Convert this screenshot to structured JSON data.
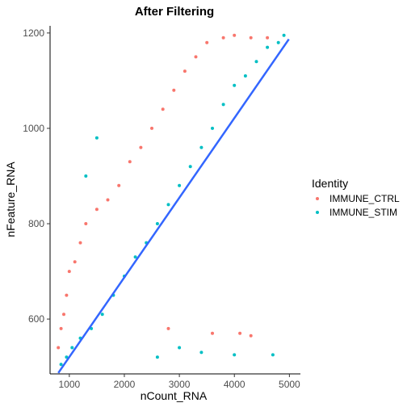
{
  "chart_data": {
    "type": "scatter",
    "title": "After Filtering",
    "xlabel": "nCount_RNA",
    "ylabel": "nFeature_RNA",
    "xlim": [
      650,
      5200
    ],
    "ylim": [
      485,
      1215
    ],
    "xticks": [
      1000,
      2000,
      3000,
      4000,
      5000
    ],
    "yticks": [
      600,
      800,
      1000,
      1200
    ],
    "grid": false,
    "legend": {
      "title": "Identity",
      "position": "right",
      "entries": [
        "IMMUNE_CTRL",
        "IMMUNE_STIM"
      ]
    },
    "series": [
      {
        "name": "IMMUNE_CTRL",
        "color": "#F8766D",
        "values": [
          [
            800,
            540
          ],
          [
            850,
            580
          ],
          [
            900,
            610
          ],
          [
            950,
            650
          ],
          [
            1000,
            700
          ],
          [
            1100,
            720
          ],
          [
            1200,
            760
          ],
          [
            1300,
            800
          ],
          [
            1500,
            830
          ],
          [
            1700,
            850
          ],
          [
            1900,
            880
          ],
          [
            2100,
            930
          ],
          [
            2300,
            960
          ],
          [
            2500,
            1000
          ],
          [
            2700,
            1040
          ],
          [
            2900,
            1080
          ],
          [
            3100,
            1120
          ],
          [
            3300,
            1150
          ],
          [
            3500,
            1180
          ],
          [
            3800,
            1190
          ],
          [
            4000,
            1195
          ],
          [
            4300,
            1190
          ],
          [
            4600,
            1190
          ],
          [
            3600,
            570
          ],
          [
            4100,
            570
          ],
          [
            4300,
            565
          ],
          [
            2800,
            580
          ]
        ]
      },
      {
        "name": "IMMUNE_STIM",
        "color": "#00BFC4",
        "values": [
          [
            850,
            505
          ],
          [
            950,
            520
          ],
          [
            1050,
            540
          ],
          [
            1200,
            560
          ],
          [
            1400,
            580
          ],
          [
            1600,
            610
          ],
          [
            1800,
            650
          ],
          [
            2000,
            690
          ],
          [
            2200,
            730
          ],
          [
            2400,
            760
          ],
          [
            2600,
            800
          ],
          [
            2800,
            840
          ],
          [
            3000,
            880
          ],
          [
            3200,
            920
          ],
          [
            3400,
            960
          ],
          [
            3600,
            1000
          ],
          [
            3800,
            1050
          ],
          [
            4000,
            1090
          ],
          [
            4200,
            1110
          ],
          [
            4400,
            1140
          ],
          [
            4600,
            1170
          ],
          [
            4800,
            1180
          ],
          [
            4900,
            1195
          ],
          [
            4700,
            525
          ],
          [
            4000,
            525
          ],
          [
            3400,
            530
          ],
          [
            2600,
            520
          ],
          [
            3000,
            540
          ],
          [
            1300,
            900
          ],
          [
            1500,
            980
          ]
        ]
      }
    ],
    "trend_line": {
      "color": "#3366FF",
      "points": [
        [
          800,
          487
        ],
        [
          4990,
          1187
        ]
      ]
    }
  }
}
